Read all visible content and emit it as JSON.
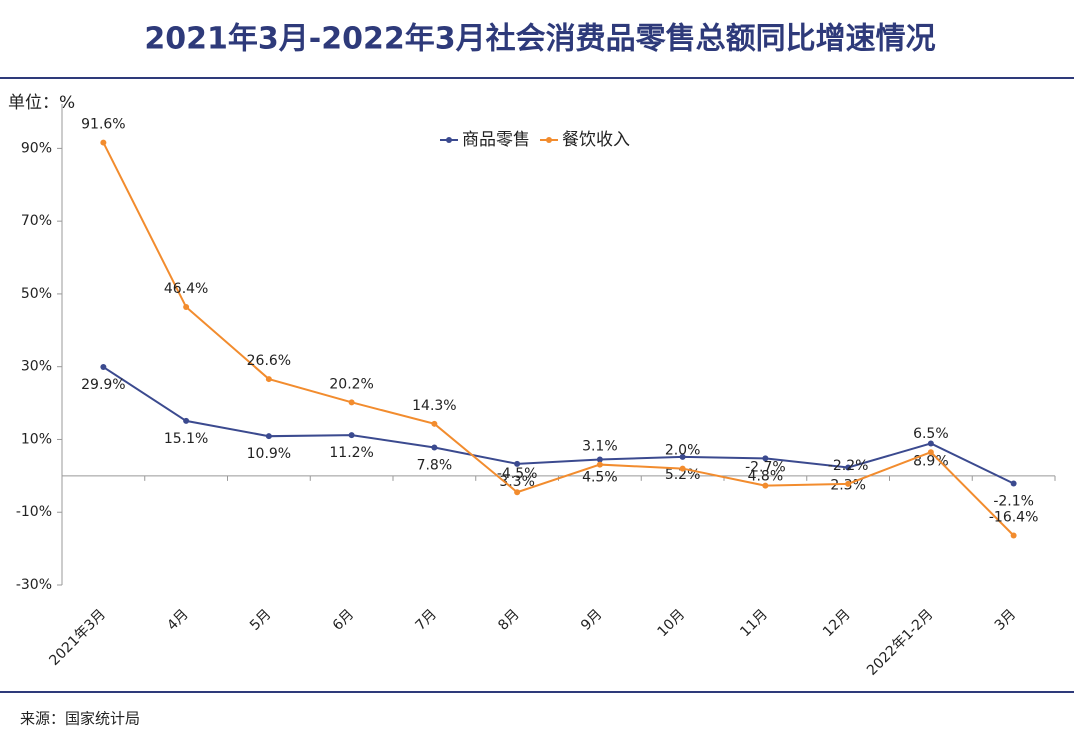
{
  "chart_data": {
    "type": "line",
    "title": "2021年3月-2022年3月社会消费品零售总额同比增速情况",
    "y_axis_label": "单位：%",
    "source": "来源：国家统计局",
    "categories": [
      "2021年3月",
      "4月",
      "5月",
      "6月",
      "7月",
      "8月",
      "9月",
      "10月",
      "11月",
      "12月",
      "2022年1-2月",
      "3月"
    ],
    "series": [
      {
        "name": "商品零售",
        "color": "#3b4a8f",
        "values": [
          29.9,
          15.1,
          10.9,
          11.2,
          7.8,
          3.3,
          4.5,
          5.2,
          4.8,
          2.3,
          8.9,
          -2.1
        ],
        "value_labels": [
          "29.9%",
          "15.1%",
          "10.9%",
          "11.2%",
          "7.8%",
          "3.3%",
          "4.5%",
          "5.2%",
          "4.8%",
          "2.3%",
          "8.9%",
          "-2.1%"
        ]
      },
      {
        "name": "餐饮收入",
        "color": "#f28c2e",
        "values": [
          91.6,
          46.4,
          26.6,
          20.2,
          14.3,
          -4.5,
          3.1,
          2.0,
          -2.7,
          -2.2,
          6.5,
          -16.4
        ],
        "value_labels": [
          "91.6%",
          "46.4%",
          "26.6%",
          "20.2%",
          "14.3%",
          "-4.5%",
          "3.1%",
          "2.0%",
          "-2.7%",
          "-2.2%",
          "6.5%",
          "-16.4%"
        ]
      }
    ],
    "ylim": [
      -30,
      100
    ],
    "yticks": [
      {
        "value": -30,
        "label": "-30%"
      },
      {
        "value": -10,
        "label": "-10%"
      },
      {
        "value": 10,
        "label": "10%"
      },
      {
        "value": 30,
        "label": "30%"
      },
      {
        "value": 50,
        "label": "50%"
      },
      {
        "value": 70,
        "label": "70%"
      },
      {
        "value": 90,
        "label": "90%"
      }
    ],
    "legend": "top"
  }
}
